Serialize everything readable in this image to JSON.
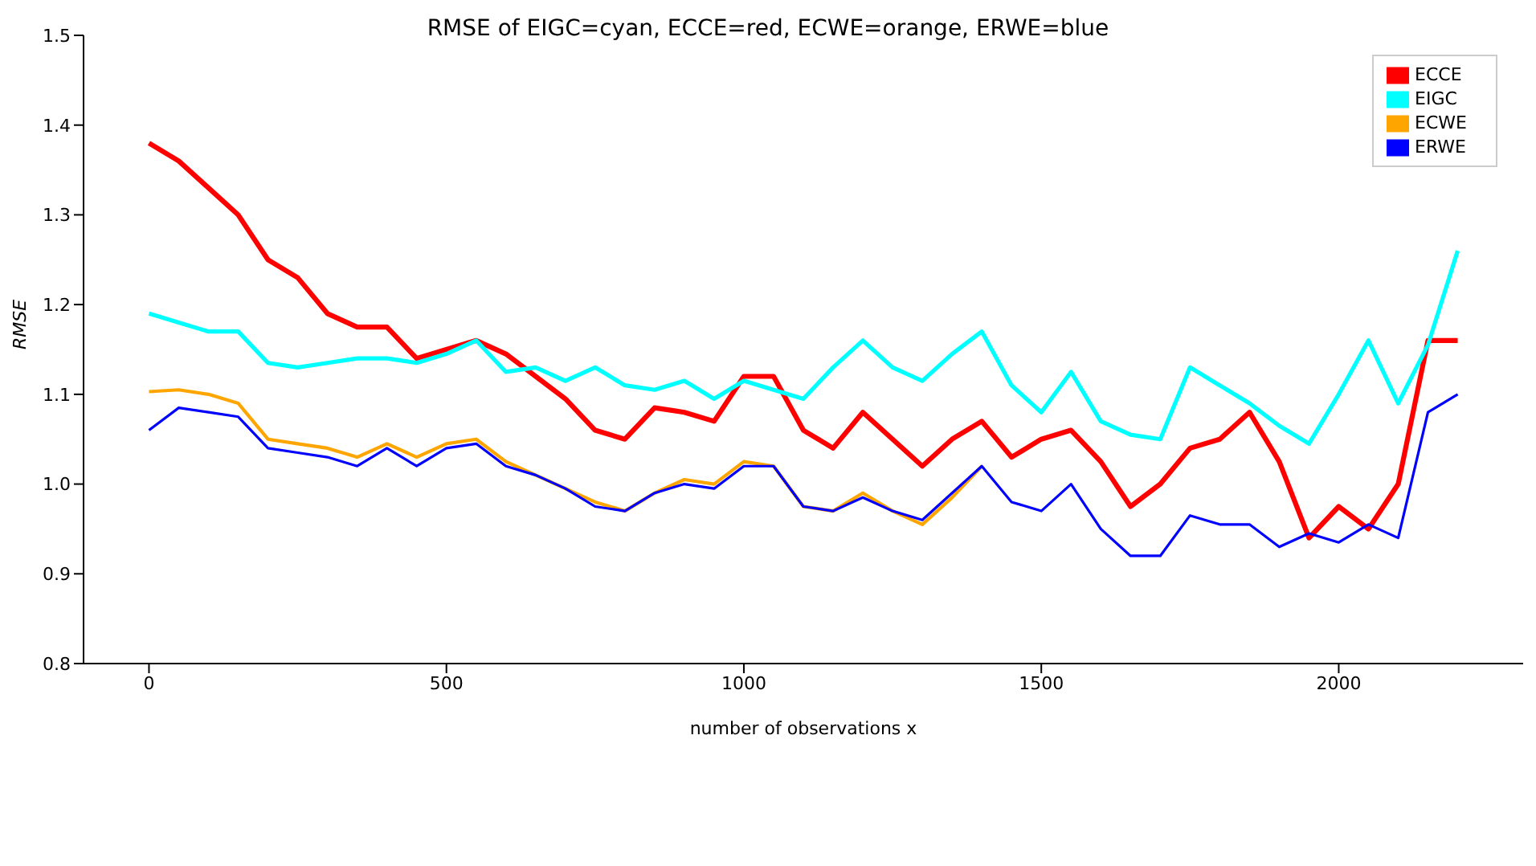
{
  "chart_data": {
    "type": "line",
    "title": "RMSE of EIGC=cyan, ECCE=red, ECWE=orange, ERWE=blue",
    "xlabel": "number of observations x",
    "ylabel": "RMSE",
    "x": [
      0,
      50,
      100,
      150,
      200,
      250,
      300,
      350,
      400,
      450,
      500,
      550,
      600,
      650,
      700,
      750,
      800,
      850,
      900,
      950,
      1000,
      1050,
      1100,
      1150,
      1200,
      1250,
      1300,
      1350,
      1400,
      1450,
      1500,
      1550,
      1600,
      1650,
      1700,
      1750,
      1800,
      1850,
      1900,
      1950,
      2000,
      2050,
      2100,
      2150,
      2200
    ],
    "series": [
      {
        "name": "ECCE",
        "color": "#ff0000",
        "values": [
          1.38,
          1.36,
          1.33,
          1.3,
          1.25,
          1.23,
          1.19,
          1.175,
          1.175,
          1.14,
          1.15,
          1.16,
          1.145,
          1.12,
          1.095,
          1.06,
          1.05,
          1.085,
          1.08,
          1.07,
          1.12,
          1.12,
          1.06,
          1.04,
          1.08,
          1.05,
          1.02,
          1.05,
          1.07,
          1.03,
          1.05,
          1.06,
          1.025,
          0.975,
          1.0,
          1.04,
          1.05,
          1.08,
          1.025,
          0.94,
          0.975,
          0.95,
          1.0,
          1.16,
          1.16
        ]
      },
      {
        "name": "EIGC",
        "color": "#00ffff",
        "values": [
          1.19,
          1.18,
          1.17,
          1.17,
          1.135,
          1.13,
          1.135,
          1.14,
          1.14,
          1.135,
          1.145,
          1.16,
          1.125,
          1.13,
          1.115,
          1.13,
          1.11,
          1.105,
          1.115,
          1.095,
          1.115,
          1.105,
          1.095,
          1.13,
          1.16,
          1.13,
          1.115,
          1.145,
          1.17,
          1.11,
          1.08,
          1.125,
          1.07,
          1.055,
          1.05,
          1.13,
          1.11,
          1.09,
          1.065,
          1.045,
          1.1,
          1.16,
          1.09,
          1.155,
          1.26
        ]
      },
      {
        "name": "ECWE",
        "color": "#ffa500",
        "values": [
          1.103,
          1.105,
          1.1,
          1.09,
          1.05,
          1.045,
          1.04,
          1.03,
          1.045,
          1.03,
          1.045,
          1.05,
          1.025,
          1.01,
          0.995,
          0.98,
          0.97,
          0.99,
          1.005,
          1.0,
          1.025,
          1.02,
          0.975,
          0.97,
          0.99,
          0.97,
          0.955,
          0.985,
          1.02,
          null,
          null,
          null,
          null,
          null,
          null,
          null,
          null,
          null,
          null,
          null,
          null,
          null,
          null,
          null,
          null
        ]
      },
      {
        "name": "ERWE",
        "color": "#0000ff",
        "values": [
          1.06,
          1.085,
          1.08,
          1.075,
          1.04,
          1.035,
          1.03,
          1.02,
          1.04,
          1.02,
          1.04,
          1.045,
          1.02,
          1.01,
          0.995,
          0.975,
          0.97,
          0.99,
          1.0,
          0.995,
          1.02,
          1.02,
          0.975,
          0.97,
          0.985,
          0.97,
          0.96,
          0.99,
          1.02,
          0.98,
          0.97,
          1.0,
          0.95,
          0.92,
          0.92,
          0.965,
          0.955,
          0.955,
          0.93,
          0.945,
          0.935,
          0.955,
          0.94,
          1.08,
          1.1
        ]
      }
    ],
    "xlim": [
      -110,
      2310
    ],
    "xticks": [
      0,
      500,
      1000,
      1500,
      2000
    ],
    "ylim": [
      0.8,
      1.5
    ],
    "yticks": [
      0.8,
      0.9,
      {
        "value": 1,
        "label": "1.0"
      },
      1.1,
      1.2,
      1.3,
      1.4,
      1.5
    ],
    "grid": false,
    "legend": "top right",
    "marker": "none",
    "line_style": "solid"
  }
}
